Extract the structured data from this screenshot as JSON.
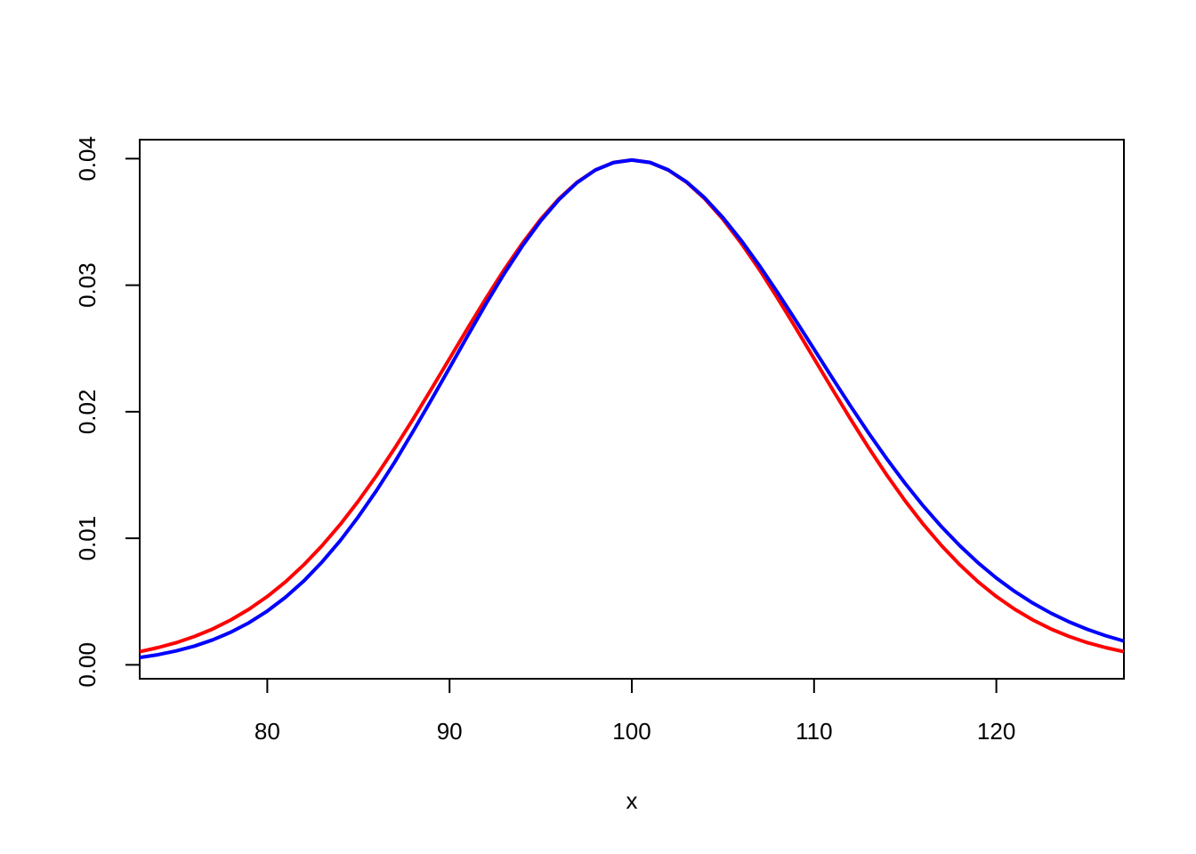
{
  "chart_data": {
    "type": "line",
    "xlabel": "x",
    "x": [
      73,
      74,
      75,
      76,
      77,
      78,
      79,
      80,
      81,
      82,
      83,
      84,
      85,
      86,
      87,
      88,
      89,
      90,
      91,
      92,
      93,
      94,
      95,
      96,
      97,
      98,
      99,
      100,
      101,
      102,
      103,
      104,
      105,
      106,
      107,
      108,
      109,
      110,
      111,
      112,
      113,
      114,
      115,
      116,
      117,
      118,
      119,
      120,
      121,
      122,
      123,
      124,
      125,
      126,
      127
    ],
    "series": [
      {
        "color": "#ff0000",
        "values": [
          0.00104,
          0.00136,
          0.00175,
          0.00224,
          0.00283,
          0.00355,
          0.0044,
          0.0054,
          0.00656,
          0.0079,
          0.00941,
          0.01109,
          0.01295,
          0.01497,
          0.01714,
          0.01942,
          0.02179,
          0.0242,
          0.02661,
          0.02897,
          0.03123,
          0.03332,
          0.03521,
          0.03683,
          0.03814,
          0.0391,
          0.0397,
          0.03989,
          0.0397,
          0.0391,
          0.03814,
          0.03683,
          0.03521,
          0.03332,
          0.03123,
          0.02897,
          0.02661,
          0.0242,
          0.02179,
          0.01942,
          0.01714,
          0.01497,
          0.01295,
          0.01109,
          0.00941,
          0.0079,
          0.00656,
          0.0054,
          0.0044,
          0.00355,
          0.00283,
          0.00224,
          0.00175,
          0.00136,
          0.00104
        ]
      },
      {
        "color": "#0000ff",
        "values": [
          0.00058,
          0.0008,
          0.0011,
          0.00148,
          0.00197,
          0.00258,
          0.00333,
          0.00425,
          0.00534,
          0.00662,
          0.00812,
          0.00981,
          0.01171,
          0.01379,
          0.01604,
          0.01845,
          0.02094,
          0.02347,
          0.02602,
          0.02853,
          0.03091,
          0.03311,
          0.03508,
          0.03676,
          0.03811,
          0.0391,
          0.03969,
          0.03989,
          0.0397,
          0.03911,
          0.03817,
          0.0369,
          0.03534,
          0.03354,
          0.03155,
          0.02942,
          0.0272,
          0.02494,
          0.02267,
          0.02045,
          0.0183,
          0.01626,
          0.01433,
          0.01254,
          0.0109,
          0.00941,
          0.00806,
          0.00686,
          0.00581,
          0.00488,
          0.00408,
          0.00339,
          0.0028,
          0.0023,
          0.00188
        ]
      }
    ],
    "xlim": [
      73,
      127
    ],
    "ylim": [
      -0.0011,
      0.0415
    ],
    "xticks": [
      80,
      90,
      100,
      110,
      120
    ],
    "yticks": [
      {
        "value": 0,
        "label": "0.00"
      },
      {
        "value": 0.01,
        "label": "0.01"
      },
      {
        "value": 0.02,
        "label": "0.02"
      },
      {
        "value": 0.03,
        "label": "0.03"
      },
      {
        "value": 0.04,
        "label": "0.04"
      }
    ],
    "grid": false
  }
}
